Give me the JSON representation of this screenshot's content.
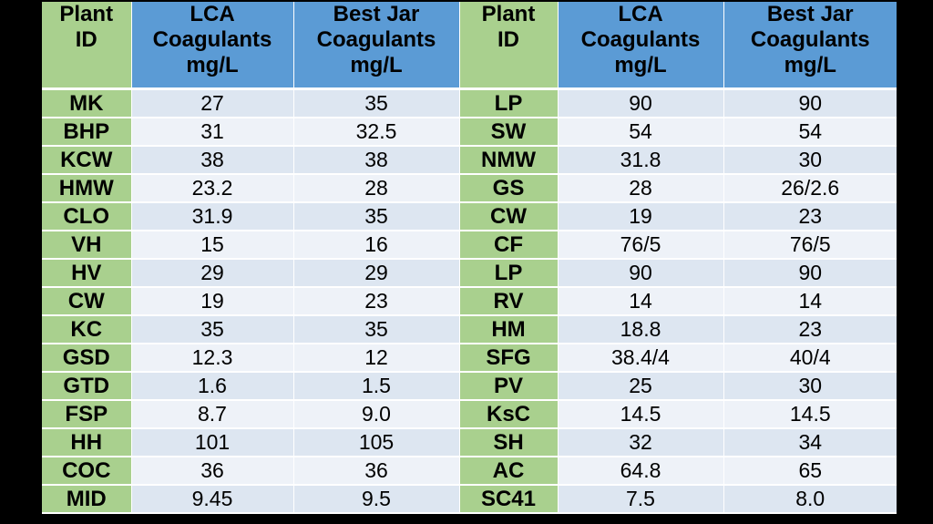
{
  "headers": {
    "plant_id": [
      "Plant",
      "ID"
    ],
    "lca": [
      "LCA",
      "Coagulants",
      "mg/L"
    ],
    "jar": [
      "Best Jar",
      "Coagulants",
      "mg/L"
    ]
  },
  "rows": [
    {
      "id1": "MK",
      "lca1": "27",
      "jar1": "35",
      "id2": "LP",
      "lca2": "90",
      "jar2": "90"
    },
    {
      "id1": "BHP",
      "lca1": "31",
      "jar1": "32.5",
      "id2": "SW",
      "lca2": "54",
      "jar2": "54"
    },
    {
      "id1": "KCW",
      "lca1": "38",
      "jar1": "38",
      "id2": "NMW",
      "lca2": "31.8",
      "jar2": "30"
    },
    {
      "id1": "HMW",
      "lca1": "23.2",
      "jar1": "28",
      "id2": "GS",
      "lca2": "28",
      "jar2": "26/2.6"
    },
    {
      "id1": "CLO",
      "lca1": "31.9",
      "jar1": "35",
      "id2": "CW",
      "lca2": "19",
      "jar2": "23"
    },
    {
      "id1": "VH",
      "lca1": "15",
      "jar1": "16",
      "id2": "CF",
      "lca2": "76/5",
      "jar2": "76/5"
    },
    {
      "id1": "HV",
      "lca1": "29",
      "jar1": "29",
      "id2": "LP",
      "lca2": "90",
      "jar2": "90"
    },
    {
      "id1": "CW",
      "lca1": "19",
      "jar1": "23",
      "id2": "RV",
      "lca2": "14",
      "jar2": "14"
    },
    {
      "id1": "KC",
      "lca1": "35",
      "jar1": "35",
      "id2": "HM",
      "lca2": "18.8",
      "jar2": "23"
    },
    {
      "id1": "GSD",
      "lca1": "12.3",
      "jar1": "12",
      "id2": "SFG",
      "lca2": "38.4/4",
      "jar2": "40/4"
    },
    {
      "id1": "GTD",
      "lca1": "1.6",
      "jar1": "1.5",
      "id2": "PV",
      "lca2": "25",
      "jar2": "30"
    },
    {
      "id1": "FSP",
      "lca1": "8.7",
      "jar1": "9.0",
      "id2": "KsC",
      "lca2": "14.5",
      "jar2": "14.5"
    },
    {
      "id1": "HH",
      "lca1": "101",
      "jar1": "105",
      "id2": "SH",
      "lca2": "32",
      "jar2": "34"
    },
    {
      "id1": "COC",
      "lca1": "36",
      "jar1": "36",
      "id2": "AC",
      "lca2": "64.8",
      "jar2": "65"
    },
    {
      "id1": "MID",
      "lca1": "9.45",
      "jar1": "9.5",
      "id2": "SC41",
      "lca2": "7.5",
      "jar2": "8.0"
    }
  ],
  "colors": {
    "background": "#000000",
    "id_column": "#a9d08e",
    "header_blue": "#5b9bd5",
    "row_band_dark": "#dde6f1",
    "row_band_light": "#eef2f8"
  }
}
